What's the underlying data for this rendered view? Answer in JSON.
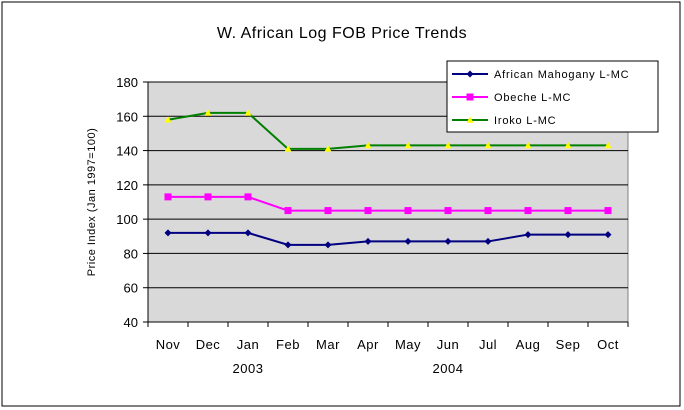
{
  "chart_data": {
    "type": "line",
    "title": "W. African Log FOB Price Trends",
    "xlabel": "",
    "ylabel": "Price Index (Jan 1997=100)",
    "ylim": [
      40,
      180
    ],
    "yticks": [
      40,
      60,
      80,
      100,
      120,
      140,
      160,
      180
    ],
    "categories": [
      "Nov",
      "Dec",
      "Jan",
      "Feb",
      "Mar",
      "Apr",
      "May",
      "Jun",
      "Jul",
      "Aug",
      "Sep",
      "Oct"
    ],
    "year_labels": [
      {
        "label": "2003",
        "category": "Jan"
      },
      {
        "label": "2004",
        "category": "Jun"
      }
    ],
    "grid": true,
    "legend_position": "top-right",
    "series": [
      {
        "name": "African Mahogany L-MC",
        "color": "#000080",
        "marker": "diamond",
        "values": [
          92,
          92,
          92,
          85,
          85,
          87,
          87,
          87,
          87,
          91,
          91,
          91
        ]
      },
      {
        "name": "Obeche L-MC",
        "color": "#ff00ff",
        "marker": "square",
        "values": [
          113,
          113,
          113,
          105,
          105,
          105,
          105,
          105,
          105,
          105,
          105,
          105
        ]
      },
      {
        "name": "Iroko L-MC",
        "color": "#008000",
        "marker": "triangle",
        "marker_color": "#ffff00",
        "values": [
          158,
          162,
          162,
          141,
          141,
          143,
          143,
          143,
          143,
          143,
          143,
          143
        ]
      }
    ]
  }
}
